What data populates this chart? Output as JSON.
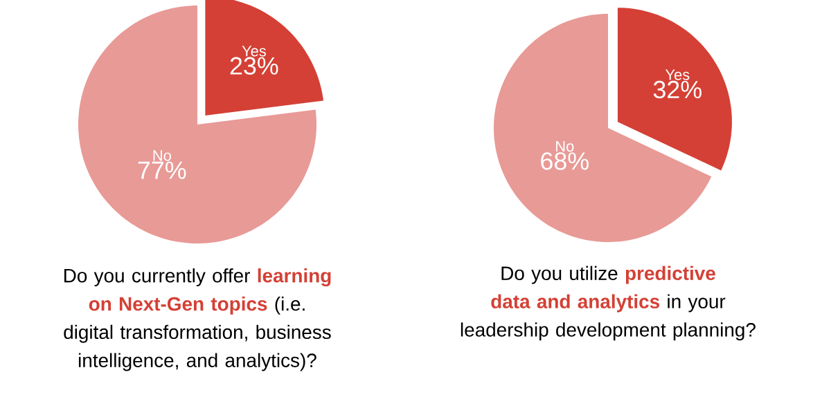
{
  "chart_data": [
    {
      "type": "pie",
      "title": "Do you currently offer **learning on Next-Gen topics** (i.e. digital transformation, business intelligence, and analytics)?",
      "categories": [
        "Yes",
        "No"
      ],
      "values": [
        23,
        77
      ],
      "colors": [
        "#d44035",
        "#e89a96"
      ],
      "value_labels": [
        "23%",
        "77%"
      ]
    },
    {
      "type": "pie",
      "title": "Do you utilize **predictive data and analytics** in your leadership development planning?",
      "categories": [
        "Yes",
        "No"
      ],
      "values": [
        32,
        68
      ],
      "colors": [
        "#d44035",
        "#e89a96"
      ],
      "value_labels": [
        "32%",
        "68%"
      ]
    }
  ]
}
